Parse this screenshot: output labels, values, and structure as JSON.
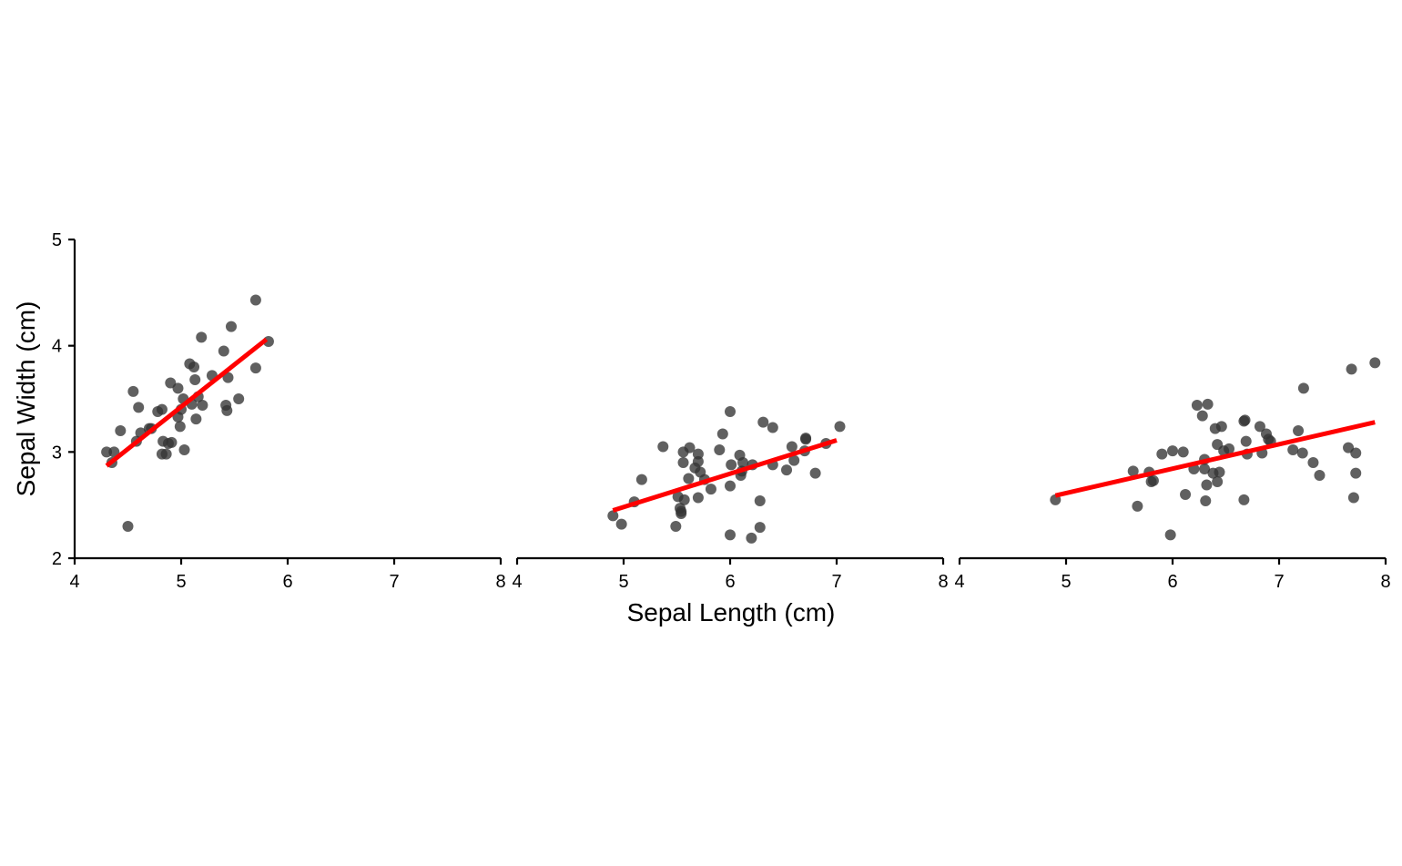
{
  "chart_data": {
    "type": "scatter",
    "xlabel": "Sepal Length (cm)",
    "ylabel": "Sepal Width (cm)",
    "xlim": [
      4,
      8
    ],
    "ylim": [
      2,
      5
    ],
    "x_ticks": [
      4,
      5,
      6,
      7,
      8
    ],
    "y_ticks": [
      2,
      3,
      4,
      5
    ],
    "grid": false,
    "legend": "none",
    "point_color": "#333333",
    "line_color": "#ff0000",
    "panels": [
      {
        "points": [
          [
            4.3,
            3.0
          ],
          [
            4.35,
            2.9
          ],
          [
            4.37,
            3.0
          ],
          [
            4.43,
            3.2
          ],
          [
            4.5,
            2.3
          ],
          [
            4.55,
            3.57
          ],
          [
            4.58,
            3.1
          ],
          [
            4.6,
            3.42
          ],
          [
            4.62,
            3.18
          ],
          [
            4.7,
            3.22
          ],
          [
            4.72,
            3.22
          ],
          [
            4.78,
            3.38
          ],
          [
            4.82,
            3.4
          ],
          [
            4.83,
            3.1
          ],
          [
            4.82,
            2.98
          ],
          [
            4.86,
            2.98
          ],
          [
            4.88,
            3.08
          ],
          [
            4.91,
            3.09
          ],
          [
            4.9,
            3.65
          ],
          [
            4.97,
            3.6
          ],
          [
            4.97,
            3.33
          ],
          [
            4.99,
            3.24
          ],
          [
            5.0,
            3.4
          ],
          [
            5.03,
            3.02
          ],
          [
            5.02,
            3.5
          ],
          [
            5.08,
            3.83
          ],
          [
            5.12,
            3.8
          ],
          [
            5.1,
            3.45
          ],
          [
            5.13,
            3.68
          ],
          [
            5.14,
            3.31
          ],
          [
            5.16,
            3.52
          ],
          [
            5.2,
            3.44
          ],
          [
            5.19,
            4.08
          ],
          [
            5.29,
            3.72
          ],
          [
            5.4,
            3.95
          ],
          [
            5.42,
            3.44
          ],
          [
            5.43,
            3.39
          ],
          [
            5.44,
            3.7
          ],
          [
            5.47,
            4.18
          ],
          [
            5.54,
            3.5
          ],
          [
            5.7,
            4.43
          ],
          [
            5.7,
            3.79
          ],
          [
            5.82,
            4.04
          ]
        ],
        "fit": [
          [
            4.3,
            2.87
          ],
          [
            5.8,
            4.06
          ]
        ]
      },
      {
        "points": [
          [
            4.9,
            2.4
          ],
          [
            4.98,
            2.32
          ],
          [
            5.1,
            2.53
          ],
          [
            5.17,
            2.74
          ],
          [
            5.37,
            3.05
          ],
          [
            5.49,
            2.3
          ],
          [
            5.51,
            2.58
          ],
          [
            5.53,
            2.47
          ],
          [
            5.54,
            2.42
          ],
          [
            5.54,
            2.44
          ],
          [
            5.56,
            2.9
          ],
          [
            5.56,
            3.0
          ],
          [
            5.57,
            2.55
          ],
          [
            5.61,
            2.75
          ],
          [
            5.62,
            3.04
          ],
          [
            5.67,
            2.85
          ],
          [
            5.7,
            2.98
          ],
          [
            5.7,
            2.91
          ],
          [
            5.7,
            2.57
          ],
          [
            5.72,
            2.81
          ],
          [
            5.76,
            2.74
          ],
          [
            5.82,
            2.65
          ],
          [
            5.9,
            3.02
          ],
          [
            5.93,
            3.17
          ],
          [
            6.0,
            3.38
          ],
          [
            6.0,
            2.68
          ],
          [
            6.01,
            2.88
          ],
          [
            6.0,
            2.22
          ],
          [
            6.09,
            2.97
          ],
          [
            6.1,
            2.78
          ],
          [
            6.11,
            2.82
          ],
          [
            6.12,
            2.9
          ],
          [
            6.2,
            2.19
          ],
          [
            6.21,
            2.88
          ],
          [
            6.28,
            2.29
          ],
          [
            6.28,
            2.54
          ],
          [
            6.31,
            3.28
          ],
          [
            6.4,
            3.23
          ],
          [
            6.4,
            2.88
          ],
          [
            6.53,
            2.83
          ],
          [
            6.58,
            3.05
          ],
          [
            6.6,
            2.92
          ],
          [
            6.7,
            3.01
          ],
          [
            6.71,
            3.12
          ],
          [
            6.71,
            3.13
          ],
          [
            6.8,
            2.8
          ],
          [
            6.9,
            3.08
          ],
          [
            7.03,
            3.24
          ]
        ],
        "fit": [
          [
            4.9,
            2.45
          ],
          [
            7.0,
            3.11
          ]
        ]
      },
      {
        "points": [
          [
            4.9,
            2.55
          ],
          [
            5.63,
            2.82
          ],
          [
            5.67,
            2.49
          ],
          [
            5.78,
            2.81
          ],
          [
            5.8,
            2.72
          ],
          [
            5.82,
            2.73
          ],
          [
            5.9,
            2.98
          ],
          [
            5.98,
            2.22
          ],
          [
            6.0,
            3.01
          ],
          [
            6.1,
            3.0
          ],
          [
            6.12,
            2.6
          ],
          [
            6.2,
            2.84
          ],
          [
            6.23,
            3.44
          ],
          [
            6.28,
            3.34
          ],
          [
            6.3,
            2.93
          ],
          [
            6.3,
            2.84
          ],
          [
            6.31,
            2.54
          ],
          [
            6.32,
            2.69
          ],
          [
            6.33,
            3.45
          ],
          [
            6.38,
            2.8
          ],
          [
            6.4,
            3.22
          ],
          [
            6.42,
            2.72
          ],
          [
            6.42,
            3.07
          ],
          [
            6.44,
            2.81
          ],
          [
            6.46,
            3.24
          ],
          [
            6.48,
            3.01
          ],
          [
            6.53,
            3.03
          ],
          [
            6.67,
            2.55
          ],
          [
            6.67,
            3.29
          ],
          [
            6.68,
            3.3
          ],
          [
            6.69,
            3.1
          ],
          [
            6.7,
            2.98
          ],
          [
            6.82,
            3.24
          ],
          [
            6.84,
            2.99
          ],
          [
            6.88,
            3.17
          ],
          [
            6.9,
            3.12
          ],
          [
            6.92,
            3.1
          ],
          [
            7.13,
            3.02
          ],
          [
            7.18,
            3.2
          ],
          [
            7.22,
            2.99
          ],
          [
            7.23,
            3.6
          ],
          [
            7.32,
            2.9
          ],
          [
            7.38,
            2.78
          ],
          [
            7.65,
            3.04
          ],
          [
            7.68,
            3.78
          ],
          [
            7.7,
            2.57
          ],
          [
            7.72,
            2.99
          ],
          [
            7.72,
            2.8
          ],
          [
            7.9,
            3.84
          ]
        ],
        "fit": [
          [
            4.9,
            2.59
          ],
          [
            7.9,
            3.28
          ]
        ]
      }
    ]
  }
}
